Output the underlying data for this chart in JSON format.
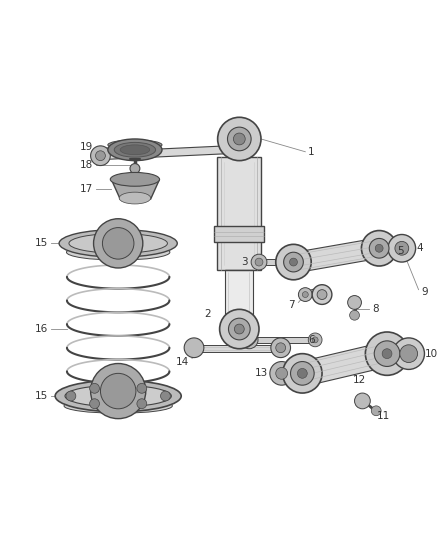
{
  "bg_color": "#ffffff",
  "lc": "#666666",
  "lc_dark": "#444444",
  "lc_light": "#aaaaaa",
  "fill_light": "#e8e8e8",
  "fill_mid": "#cccccc",
  "fill_dark": "#999999",
  "fill_arm": "#d4d4d4",
  "figsize": [
    4.38,
    5.33
  ],
  "dpi": 100,
  "xlim": [
    0,
    438
  ],
  "ylim": [
    0,
    533
  ]
}
